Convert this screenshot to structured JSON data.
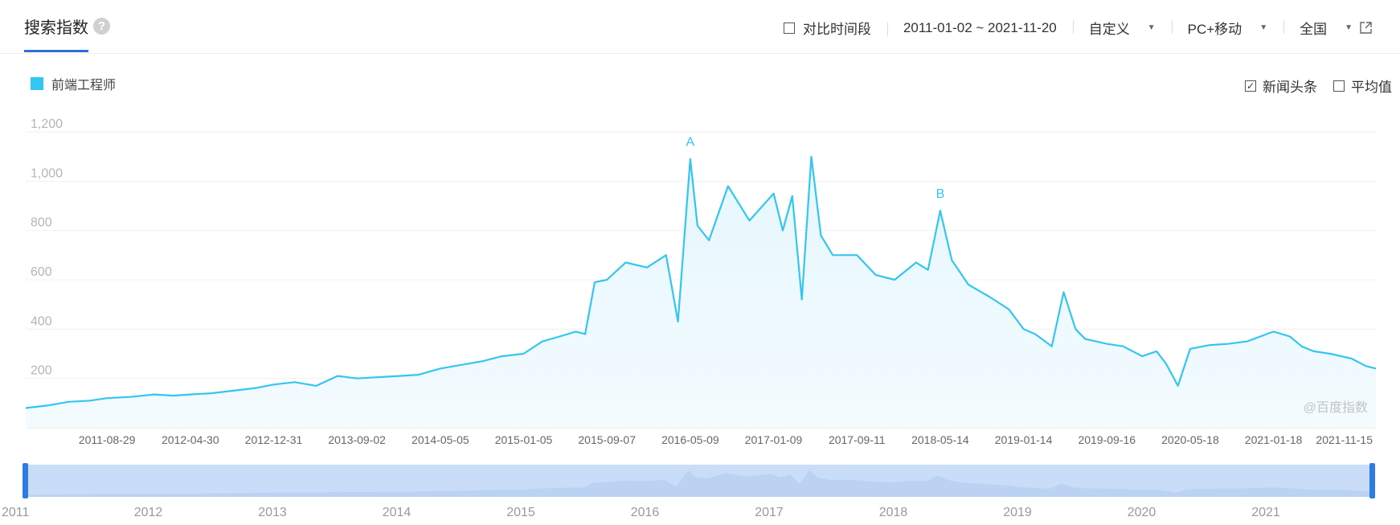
{
  "header": {
    "title": "搜索指数",
    "help_icon": "question-circle-icon",
    "compare_label": "对比时间段",
    "date_range": "2011-01-02 ~ 2021-11-20",
    "period_select": "自定义",
    "device_select": "PC+移动",
    "region_select": "全国",
    "export_icon": "external-link-icon"
  },
  "legend": {
    "series_name": "前端工程师",
    "color": "#33c6f0"
  },
  "options": {
    "news_headlines": {
      "label": "新闻头条",
      "checked": true
    },
    "average": {
      "label": "平均值",
      "checked": false
    }
  },
  "watermark": "@百度指数",
  "chart_data": {
    "type": "area",
    "series": [
      {
        "name": "前端工程师",
        "color": "#33c6f0",
        "x": [
          "2011-01-02",
          "2011-03-06",
          "2011-05-08",
          "2011-07-10",
          "2011-08-29",
          "2011-11-06",
          "2012-01-15",
          "2012-03-11",
          "2012-04-30",
          "2012-07-01",
          "2012-09-02",
          "2012-11-04",
          "2012-12-31",
          "2013-03-03",
          "2013-05-05",
          "2013-07-07",
          "2013-09-02",
          "2013-11-03",
          "2014-01-05",
          "2014-03-02",
          "2014-05-05",
          "2014-07-06",
          "2014-09-07",
          "2014-11-02",
          "2015-01-05",
          "2015-03-01",
          "2015-05-03",
          "2015-06-07",
          "2015-07-05",
          "2015-08-02",
          "2015-09-07",
          "2015-11-01",
          "2016-01-03",
          "2016-02-28",
          "2016-04-03",
          "2016-05-09",
          "2016-05-30",
          "2016-07-03",
          "2016-08-28",
          "2016-10-30",
          "2017-01-09",
          "2017-02-05",
          "2017-03-05",
          "2017-04-02",
          "2017-04-30",
          "2017-05-28",
          "2017-07-02",
          "2017-09-11",
          "2017-11-05",
          "2017-12-31",
          "2018-03-04",
          "2018-04-08",
          "2018-05-14",
          "2018-06-17",
          "2018-08-05",
          "2018-10-07",
          "2018-12-02",
          "2019-01-14",
          "2019-02-17",
          "2019-04-07",
          "2019-05-12",
          "2019-06-16",
          "2019-07-14",
          "2019-09-16",
          "2019-11-03",
          "2019-12-29",
          "2020-02-09",
          "2020-03-08",
          "2020-04-12",
          "2020-05-18",
          "2020-07-12",
          "2020-09-06",
          "2020-11-01",
          "2021-01-18",
          "2021-03-07",
          "2021-04-11",
          "2021-05-16",
          "2021-07-04",
          "2021-09-05",
          "2021-10-17",
          "2021-11-15"
        ],
        "values": [
          80,
          90,
          105,
          110,
          120,
          125,
          135,
          130,
          135,
          140,
          150,
          160,
          175,
          185,
          170,
          210,
          200,
          205,
          210,
          215,
          240,
          255,
          270,
          290,
          300,
          350,
          375,
          390,
          380,
          590,
          600,
          670,
          650,
          700,
          430,
          1090,
          820,
          760,
          980,
          840,
          950,
          800,
          940,
          520,
          1100,
          780,
          700,
          700,
          620,
          600,
          670,
          640,
          880,
          680,
          580,
          530,
          480,
          400,
          380,
          330,
          550,
          400,
          360,
          340,
          330,
          290,
          310,
          260,
          170,
          320,
          335,
          340,
          350,
          390,
          370,
          330,
          310,
          300,
          280,
          250,
          240
        ]
      }
    ],
    "annotations": [
      {
        "label": "A",
        "x": "2016-05-09",
        "y": 1090
      },
      {
        "label": "B",
        "x": "2018-05-14",
        "y": 880
      }
    ],
    "ylim": [
      0,
      1200
    ],
    "yticks": [
      "1,200",
      "1,000",
      "800",
      "600",
      "400",
      "200"
    ],
    "xticks": [
      "2011-08-29",
      "2012-04-30",
      "2012-12-31",
      "2013-09-02",
      "2014-05-05",
      "2015-01-05",
      "2015-09-07",
      "2016-05-09",
      "2017-01-09",
      "2017-09-11",
      "2018-05-14",
      "2019-01-14",
      "2019-09-16",
      "2020-05-18",
      "2021-01-18",
      "2021-11-15"
    ],
    "navigator_years": [
      "2011",
      "2012",
      "2013",
      "2014",
      "2015",
      "2016",
      "2017",
      "2018",
      "2019",
      "2020",
      "2021"
    ],
    "grid": true
  }
}
